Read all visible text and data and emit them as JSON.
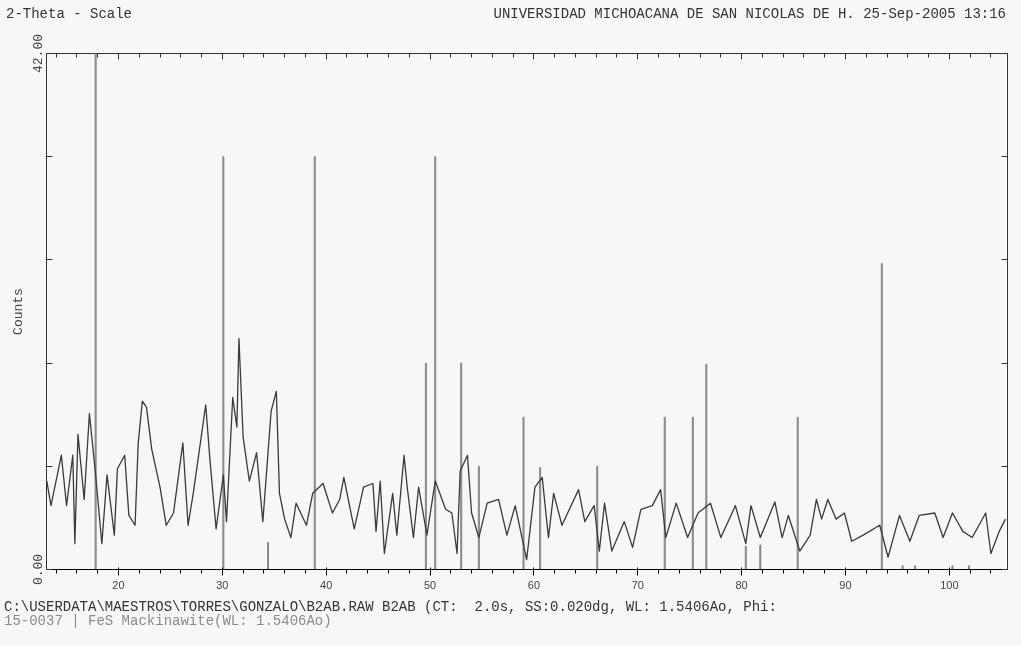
{
  "chart_data": {
    "type": "line",
    "title": "2-Theta - Scale",
    "subtitle": "UNIVERSIDAD MICHOACANA DE SAN NICOLAS DE H. 25-Sep-2005 13:16",
    "ylabel": "Counts",
    "annotations": [
      "C:\\USERDATA\\MAESTROS\\TORRES\\GONZALO\\B2AB.RAW B2AB (CT:  2.0s, SS:0.020dg, WL: 1.5406Ao, Phi:"
    ],
    "xlim": [
      13.07,
      105.6
    ],
    "ylim": [
      0,
      42
    ],
    "xticks": [
      20,
      30,
      40,
      50,
      60,
      70,
      80,
      90,
      100
    ],
    "yticks": [
      {
        "value": 0,
        "label": "0.00"
      },
      {
        "value": 8.4,
        "label": null
      },
      {
        "value": 16.8,
        "label": null
      },
      {
        "value": 25.2,
        "label": null
      },
      {
        "value": 33.6,
        "label": null
      },
      {
        "value": 42,
        "label": "42.00"
      }
    ],
    "legend": false,
    "series": [
      {
        "name": "15-0037 | FeS Mackinawite(WL: 1.5406Ao)",
        "type": "bar",
        "color": "#8a8a8a",
        "x": [
          17.8,
          30.1,
          34.4,
          38.9,
          49.6,
          50.5,
          53.0,
          54.7,
          59.0,
          60.6,
          66.1,
          72.6,
          75.3,
          76.6,
          80.4,
          81.8,
          85.4,
          93.5,
          95.5,
          96.7,
          100.3,
          101.9
        ],
        "values": [
          42,
          33.6,
          2.2,
          33.6,
          16.8,
          33.6,
          16.8,
          8.4,
          12.4,
          8.3,
          8.4,
          12.4,
          12.4,
          16.7,
          1.9,
          2.0,
          12.4,
          24.9,
          0.3,
          0.3,
          0.3,
          0.3
        ]
      },
      {
        "color": "#3a3a3a",
        "x": [
          13.1,
          13.5,
          14.5,
          15.0,
          15.6,
          15.8,
          16.1,
          16.7,
          17.2,
          17.8,
          18.4,
          18.9,
          19.6,
          19.9,
          20.6,
          21.0,
          21.6,
          21.9,
          22.3,
          22.7,
          23.2,
          24.0,
          24.6,
          25.3,
          26.2,
          26.7,
          27.2,
          27.8,
          28.4,
          28.8,
          29.4,
          30.1,
          30.4,
          31.0,
          31.4,
          31.6,
          32.0,
          32.6,
          33.3,
          33.9,
          34.7,
          35.2,
          35.5,
          36.0,
          36.6,
          37.1,
          38.1,
          38.7,
          39.7,
          40.6,
          41.3,
          41.7,
          42.7,
          43.6,
          44.5,
          44.8,
          45.2,
          45.6,
          46.4,
          46.8,
          47.5,
          47.8,
          48.4,
          48.9,
          49.7,
          50.5,
          51.5,
          52.1,
          52.6,
          52.9,
          53.6,
          54.0,
          54.7,
          55.5,
          56.6,
          57.4,
          58.2,
          59.3,
          60.1,
          60.8,
          61.4,
          61.9,
          62.7,
          64.3,
          64.9,
          65.8,
          66.3,
          66.8,
          67.5,
          68.7,
          69.5,
          70.3,
          71.4,
          72.2,
          72.7,
          73.7,
          74.8,
          75.8,
          77.0,
          78.0,
          79.4,
          80.4,
          80.9,
          81.8,
          83.2,
          83.9,
          84.5,
          85.6,
          86.6,
          87.2,
          87.7,
          88.3,
          89.1,
          89.9,
          90.6,
          91.7,
          93.3,
          94.1,
          95.2,
          96.2,
          97.1,
          98.6,
          99.4,
          100.3,
          101.3,
          102.2,
          103.5,
          104.0,
          104.8,
          105.4
        ],
        "values": [
          7.2,
          5.2,
          9.3,
          5.2,
          9.3,
          2.1,
          11.0,
          5.7,
          12.7,
          7.7,
          2.1,
          7.7,
          2.8,
          8.2,
          9.3,
          4.4,
          3.6,
          10.3,
          13.7,
          13.2,
          9.8,
          6.7,
          3.6,
          4.6,
          10.3,
          3.6,
          6.2,
          9.8,
          13.4,
          9.0,
          3.3,
          7.7,
          3.9,
          14.0,
          11.6,
          18.8,
          10.8,
          7.2,
          9.5,
          3.9,
          12.9,
          14.5,
          6.2,
          4.1,
          2.6,
          5.4,
          3.6,
          6.2,
          7.0,
          4.6,
          5.7,
          7.5,
          3.3,
          6.7,
          7.0,
          3.1,
          7.2,
          1.3,
          6.2,
          2.8,
          9.3,
          6.7,
          2.6,
          6.7,
          2.8,
          7.2,
          4.9,
          4.6,
          1.3,
          8.0,
          9.3,
          4.6,
          2.6,
          5.4,
          5.7,
          2.8,
          5.2,
          0.8,
          6.7,
          7.5,
          2.6,
          6.2,
          3.6,
          6.5,
          3.9,
          5.2,
          1.5,
          5.4,
          1.5,
          3.9,
          1.8,
          4.9,
          5.2,
          6.5,
          2.6,
          5.4,
          2.6,
          4.6,
          5.4,
          2.6,
          5.2,
          2.1,
          5.2,
          2.6,
          5.5,
          2.6,
          4.4,
          1.5,
          2.8,
          5.7,
          4.1,
          5.7,
          4.1,
          4.6,
          2.3,
          2.8,
          3.6,
          1.0,
          4.4,
          2.3,
          4.4,
          4.6,
          2.6,
          4.6,
          3.1,
          2.6,
          4.6,
          1.3,
          3.1,
          4.1
        ]
      }
    ]
  }
}
